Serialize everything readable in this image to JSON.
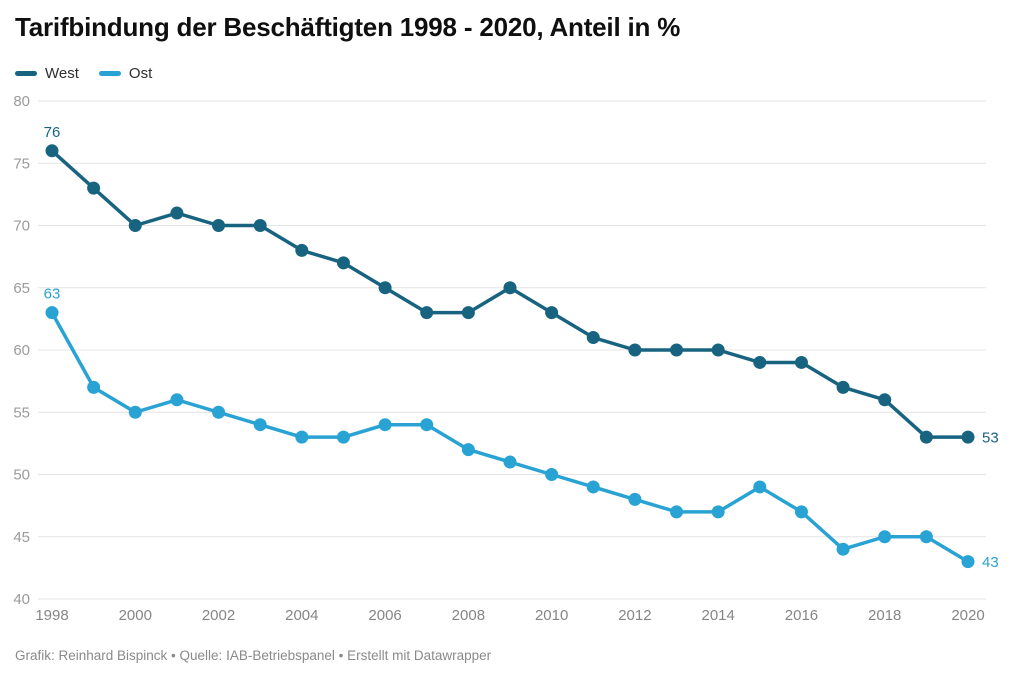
{
  "title": "Tarifbindung der Beschäftigten 1998 - 2020, Anteil in %",
  "legend": {
    "west": "West",
    "ost": "Ost"
  },
  "footer": "Grafik: Reinhard Bispinck • Quelle: IAB-Betriebspanel • Erstellt mit Datawrapper",
  "colors": {
    "west": "#186480",
    "ost": "#29a2d4",
    "grid": "#e4e4e4",
    "axis_y_text": "#9b9b9b",
    "axis_x_text": "#868686",
    "title_text": "#0f0f0f",
    "footer_text": "#8a8a8a"
  },
  "chart_data": {
    "type": "line",
    "title": "Tarifbindung der Beschäftigten 1998 - 2020, Anteil in %",
    "xlabel": "",
    "ylabel": "Anteil in %",
    "x": [
      1998,
      1999,
      2000,
      2001,
      2002,
      2003,
      2004,
      2005,
      2006,
      2007,
      2008,
      2009,
      2010,
      2011,
      2012,
      2013,
      2014,
      2015,
      2016,
      2017,
      2018,
      2019,
      2020
    ],
    "series": [
      {
        "name": "West",
        "color": "#186480",
        "values": [
          76,
          73,
          70,
          71,
          70,
          70,
          68,
          67,
          65,
          63,
          63,
          65,
          63,
          61,
          60,
          60,
          60,
          59,
          59,
          57,
          56,
          53,
          53
        ]
      },
      {
        "name": "Ost",
        "color": "#29a2d4",
        "values": [
          63,
          57,
          55,
          56,
          55,
          54,
          53,
          53,
          54,
          54,
          52,
          51,
          50,
          49,
          48,
          47,
          47,
          49,
          47,
          44,
          45,
          45,
          43
        ]
      }
    ],
    "ylim": [
      40,
      80
    ],
    "yticks": [
      40,
      45,
      50,
      55,
      60,
      65,
      70,
      75,
      80
    ],
    "xticks": [
      1998,
      2000,
      2002,
      2004,
      2006,
      2008,
      2010,
      2012,
      2014,
      2016,
      2018,
      2020
    ],
    "grid": "horizontal-only",
    "legend_position": "top-left",
    "point_labels": "first-and-last"
  }
}
